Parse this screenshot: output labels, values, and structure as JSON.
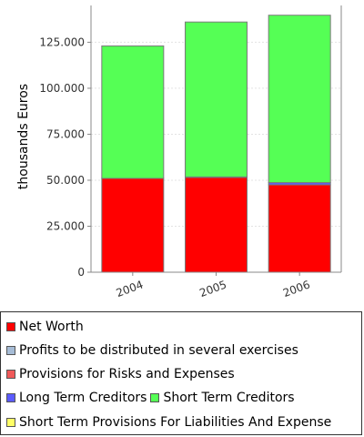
{
  "chart_data": {
    "type": "bar",
    "stacked": true,
    "categories": [
      "2004",
      "2005",
      "2006"
    ],
    "ylabel": "thousands Euros",
    "xlabel": "",
    "ylim": [
      0,
      145000
    ],
    "yticks": [
      0,
      25000,
      50000,
      75000,
      100000,
      125000
    ],
    "ytick_labels": [
      "0",
      "25.000",
      "50.000",
      "75.000",
      "100.000",
      "125.000"
    ],
    "grid": true,
    "legend_position": "bottom",
    "series": [
      {
        "name": "Net Worth",
        "color": "#ff0000",
        "values": [
          51000,
          51500,
          47500
        ]
      },
      {
        "name": "Profits to be distributed in several exercises",
        "color": "#a6bcd6",
        "values": [
          0,
          0,
          0
        ]
      },
      {
        "name": "Provisions for Risks and Expenses",
        "color": "#f05a5a",
        "values": [
          0,
          0,
          0
        ]
      },
      {
        "name": "Long Term Creditors",
        "color": "#5b5bff",
        "values": [
          0,
          300,
          1200
        ]
      },
      {
        "name": "Short Term Creditors",
        "color": "#55ff55",
        "values": [
          72000,
          84200,
          91000
        ]
      },
      {
        "name": "Short Term Provisions For Liabilities And Expenses",
        "color": "#ffff66",
        "values": [
          0,
          0,
          0
        ]
      }
    ]
  },
  "legend": {
    "rows": [
      [
        {
          "label": "Net Worth",
          "color": "#ff0000"
        }
      ],
      [
        {
          "label": "Profits to be distributed in several exercises",
          "color": "#a6bcd6"
        }
      ],
      [
        {
          "label": "Provisions for Risks and Expenses",
          "color": "#f05a5a"
        }
      ],
      [
        {
          "label": "Long Term Creditors",
          "color": "#5b5bff"
        },
        {
          "label": "Short Term Creditors",
          "color": "#55ff55"
        }
      ],
      [
        {
          "label": "Short Term Provisions For Liabilities And Expense",
          "color": "#ffff66"
        }
      ]
    ]
  }
}
